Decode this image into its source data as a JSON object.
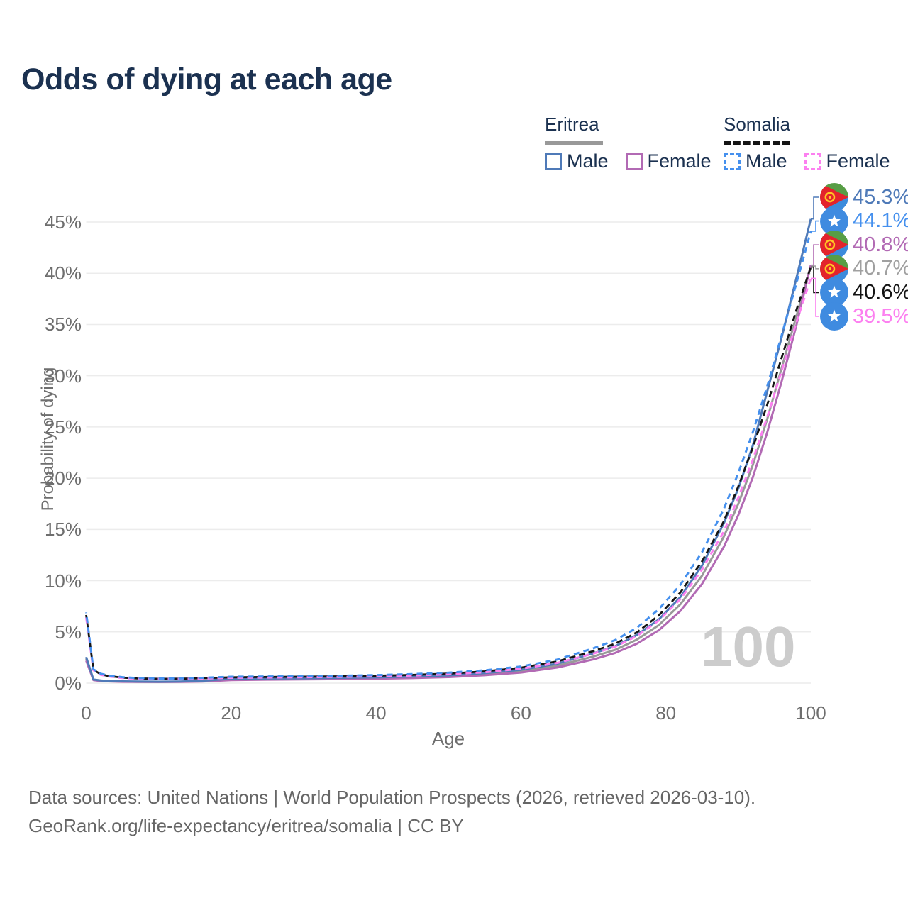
{
  "title": "Odds of dying at each age",
  "legend": {
    "groups": [
      {
        "name": "Eritrea",
        "style": "solid",
        "entries": [
          {
            "label": "Male",
            "color": "#4f7ab8"
          },
          {
            "label": "Female",
            "color": "#b26ab4"
          }
        ]
      },
      {
        "name": "Somalia",
        "style": "dashed",
        "entries": [
          {
            "label": "Male",
            "color": "#4590ee"
          },
          {
            "label": "Female",
            "color": "#fc80f0"
          }
        ]
      }
    ]
  },
  "axes": {
    "y_title": "Probability of dying",
    "x_title": "Age"
  },
  "watermark": "100",
  "footer": {
    "line1": "Data sources: United Nations | World Population Prospects (2026, retrieved 2026-03-10).",
    "line2": "GeoRank.org/life-expectancy/eritrea/somalia | CC BY"
  },
  "colors": {
    "title_text": "#1b3150",
    "axis_text": "#6e6e6e",
    "gridline": "#ececec",
    "watermark": "#cccccc",
    "eritrea_male": "#4f7ab8",
    "eritrea_female": "#b26ab4",
    "eritrea_all": "#999999",
    "somalia_male": "#4590ee",
    "somalia_female": "#fc80f0",
    "somalia_all": "#141414"
  },
  "chart_data": {
    "type": "line",
    "title": "Odds of dying at each age",
    "xlabel": "Age",
    "ylabel": "Probability of dying",
    "xlim": [
      0,
      100
    ],
    "ylim": [
      0,
      47
    ],
    "xticks": [
      0,
      20,
      40,
      60,
      80,
      100
    ],
    "yticks": [
      0,
      5,
      10,
      15,
      20,
      25,
      30,
      35,
      40,
      45
    ],
    "grid": "horizontal-only",
    "legend_position": "top-right",
    "ages": [
      0,
      1,
      2,
      3,
      5,
      7,
      10,
      13,
      16,
      20,
      25,
      30,
      35,
      40,
      45,
      50,
      55,
      60,
      65,
      70,
      73,
      76,
      79,
      82,
      85,
      88,
      90,
      92,
      94,
      96,
      98,
      100
    ],
    "series": [
      {
        "id": "eritrea_all",
        "name": "Eritrea Both sexes",
        "country": "Eritrea",
        "sex": "all",
        "color": "#999999",
        "dash": "none",
        "end_value_pct": 40.7,
        "values": [
          2.4,
          0.32,
          0.23,
          0.19,
          0.15,
          0.13,
          0.12,
          0.14,
          0.19,
          0.36,
          0.4,
          0.42,
          0.45,
          0.49,
          0.56,
          0.67,
          0.87,
          1.16,
          1.7,
          2.6,
          3.25,
          4.25,
          5.65,
          7.7,
          10.5,
          14.3,
          17.5,
          21.3,
          25.8,
          30.8,
          35.8,
          40.7
        ]
      },
      {
        "id": "eritrea_female",
        "name": "Eritrea Female",
        "country": "Eritrea",
        "sex": "female",
        "color": "#b26ab4",
        "dash": "none",
        "end_value_pct": 40.8,
        "values": [
          2.2,
          0.3,
          0.21,
          0.17,
          0.13,
          0.12,
          0.11,
          0.12,
          0.16,
          0.3,
          0.34,
          0.36,
          0.39,
          0.43,
          0.49,
          0.59,
          0.77,
          1.03,
          1.52,
          2.32,
          2.95,
          3.85,
          5.15,
          7.05,
          9.7,
          13.3,
          16.4,
          20.1,
          24.5,
          29.5,
          34.9,
          40.8
        ]
      },
      {
        "id": "eritrea_male",
        "name": "Eritrea Male",
        "country": "Eritrea",
        "sex": "male",
        "color": "#4f7ab8",
        "dash": "none",
        "end_value_pct": 45.3,
        "values": [
          2.55,
          0.35,
          0.26,
          0.21,
          0.17,
          0.15,
          0.14,
          0.16,
          0.22,
          0.42,
          0.46,
          0.48,
          0.52,
          0.56,
          0.64,
          0.76,
          0.98,
          1.3,
          1.9,
          2.9,
          3.6,
          4.7,
          6.2,
          8.4,
          11.5,
          15.6,
          19.0,
          23.2,
          28.5,
          33.8,
          39.5,
          45.3
        ]
      },
      {
        "id": "somalia_all",
        "name": "Somalia Both sexes",
        "country": "Somalia",
        "sex": "all",
        "color": "#141414",
        "dash": "9 5",
        "dashoffset": 3,
        "end_value_pct": 40.6,
        "values": [
          6.65,
          1.3,
          0.87,
          0.7,
          0.54,
          0.46,
          0.42,
          0.43,
          0.48,
          0.57,
          0.6,
          0.63,
          0.66,
          0.72,
          0.8,
          0.93,
          1.15,
          1.5,
          2.12,
          3.12,
          3.85,
          4.95,
          6.6,
          8.85,
          11.9,
          15.8,
          19.2,
          23.0,
          27.2,
          31.8,
          36.4,
          40.6
        ]
      },
      {
        "id": "somalia_female",
        "name": "Somalia Female",
        "country": "Somalia",
        "sex": "female",
        "color": "#fc80f0",
        "dash": "8 6",
        "dashoffset": 0,
        "end_value_pct": 39.5,
        "values": [
          6.4,
          1.25,
          0.82,
          0.66,
          0.5,
          0.43,
          0.4,
          0.41,
          0.45,
          0.52,
          0.55,
          0.58,
          0.61,
          0.66,
          0.74,
          0.86,
          1.06,
          1.4,
          1.97,
          2.88,
          3.55,
          4.6,
          6.1,
          8.2,
          11.1,
          14.8,
          18.1,
          21.8,
          26.0,
          30.5,
          35.2,
          39.5
        ]
      },
      {
        "id": "somalia_male",
        "name": "Somalia Male",
        "country": "Somalia",
        "sex": "male",
        "color": "#4590ee",
        "dash": "8 6",
        "dashoffset": 7,
        "end_value_pct": 44.1,
        "values": [
          6.9,
          1.35,
          0.92,
          0.75,
          0.58,
          0.5,
          0.45,
          0.46,
          0.52,
          0.62,
          0.65,
          0.68,
          0.72,
          0.78,
          0.88,
          1.02,
          1.25,
          1.62,
          2.3,
          3.4,
          4.2,
          5.4,
          7.2,
          9.6,
          12.8,
          17.0,
          20.5,
          24.5,
          29.0,
          34.0,
          39.0,
          44.1
        ]
      }
    ],
    "end_labels": [
      {
        "text": "45.3%",
        "value": 45.3,
        "flag": "eritrea",
        "series": "eritrea_male",
        "color": "#4f7ab8"
      },
      {
        "text": "44.1%",
        "value": 44.1,
        "flag": "somalia",
        "series": "somalia_male",
        "color": "#4590ee"
      },
      {
        "text": "40.8%",
        "value": 40.8,
        "flag": "eritrea",
        "series": "eritrea_female",
        "color": "#b26ab4"
      },
      {
        "text": "40.7%",
        "value": 40.7,
        "flag": "eritrea",
        "series": "eritrea_all",
        "color": "#a0a0a0"
      },
      {
        "text": "40.6%",
        "value": 40.6,
        "flag": "somalia",
        "series": "somalia_all",
        "color": "#141414"
      },
      {
        "text": "39.5%",
        "value": 39.5,
        "flag": "somalia",
        "series": "somalia_female",
        "color": "#fc80f0"
      }
    ]
  }
}
